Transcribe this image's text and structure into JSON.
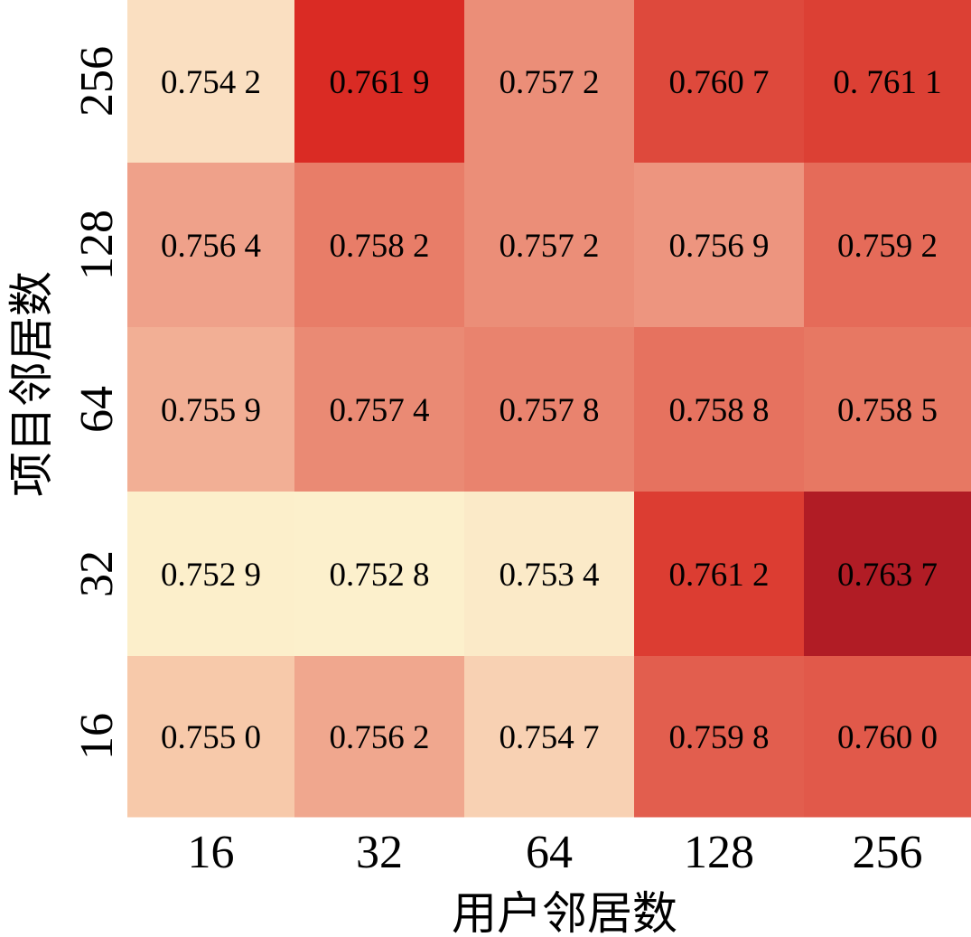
{
  "chart_data": {
    "type": "heatmap",
    "title": "",
    "xlabel": "用户邻居数",
    "ylabel": "项目邻居数",
    "x_categories": [
      "16",
      "32",
      "64",
      "128",
      "256"
    ],
    "y_categories": [
      "256",
      "128",
      "64",
      "32",
      "16"
    ],
    "values": [
      [
        0.7542,
        0.7619,
        0.7572,
        0.7607,
        0.7611
      ],
      [
        0.7564,
        0.7582,
        0.7572,
        0.7569,
        0.7592
      ],
      [
        0.7559,
        0.7574,
        0.7578,
        0.7588,
        0.7585
      ],
      [
        0.7529,
        0.7528,
        0.7534,
        0.7612,
        0.7637
      ],
      [
        0.755,
        0.7562,
        0.7547,
        0.7598,
        0.76
      ]
    ],
    "cell_labels": [
      [
        "0.754 2",
        "0.761 9",
        "0.757 2",
        "0.760 7",
        "0. 761 1"
      ],
      [
        "0.756 4",
        "0.758 2",
        "0.757 2",
        "0.756 9",
        "0.759 2"
      ],
      [
        "0.755 9",
        "0.757 4",
        "0.757 8",
        "0.758 8",
        "0.758 5"
      ],
      [
        "0.752 9",
        "0.752 8",
        "0.753 4",
        "0.761 2",
        "0.763 7"
      ],
      [
        "0.755 0",
        "0.756 2",
        "0.754 7",
        "0.759 8",
        "0.760 0"
      ]
    ],
    "colormap": "reds",
    "color_low": "#fcf0cc",
    "color_high": "#b11c25",
    "legend": "none",
    "grid": false
  }
}
